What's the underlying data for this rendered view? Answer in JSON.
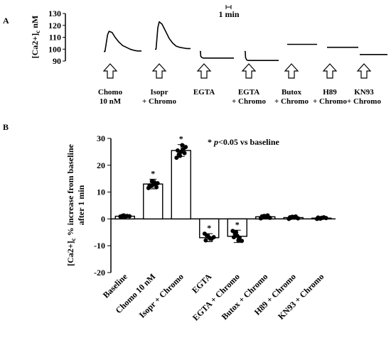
{
  "panel_a_letter": "A",
  "panel_b_letter": "B",
  "chart_data": [
    {
      "type": "line",
      "panel": "A",
      "ylabel_main": "[Ca2+]",
      "ylabel_sub": "c",
      "ylabel_unit": " nM",
      "ylim": [
        90,
        130
      ],
      "yticks": [
        90,
        100,
        110,
        120,
        130
      ],
      "scale_bar_label": "1 min",
      "series": [
        {
          "label_lines": [
            "Chomo",
            "10 nM"
          ],
          "t": [
            0,
            0.03,
            0.1,
            0.14,
            0.22,
            0.3,
            0.4,
            0.5,
            0.6,
            0.7,
            0.8,
            0.9,
            1.0
          ],
          "y": [
            98,
            98,
            112,
            115,
            114,
            110,
            106,
            103,
            101.5,
            100,
            99,
            98.5,
            98.5
          ]
        },
        {
          "label_lines": [
            "Isopr",
            "+ Chromo"
          ],
          "t": [
            0,
            0.03,
            0.08,
            0.12,
            0.2,
            0.3,
            0.4,
            0.5,
            0.6,
            0.7,
            0.8,
            0.9,
            1.0
          ],
          "y": [
            100,
            100,
            118,
            123,
            121,
            115,
            109,
            105,
            102.5,
            101.5,
            101,
            100.5,
            100.5
          ]
        },
        {
          "label_lines": [
            "EGTA"
          ],
          "t": [
            0,
            0.02,
            0.03,
            0.06,
            0.1,
            1.0
          ],
          "y": [
            98,
            98,
            94,
            93,
            92.5,
            92.5
          ]
        },
        {
          "label_lines": [
            "EGTA",
            "+ Chromo"
          ],
          "t": [
            0,
            0.02,
            0.03,
            0.06,
            0.1,
            1.0
          ],
          "y": [
            98,
            98,
            93,
            91,
            90.5,
            90.5
          ]
        },
        {
          "label_lines": [
            "Butox",
            "+ Chromo"
          ],
          "t": [
            0,
            0.5,
            1.0
          ],
          "y": [
            104,
            104,
            104
          ]
        },
        {
          "label_lines": [
            "H89",
            "+ Chromo"
          ],
          "t": [
            0,
            0.5,
            1.0
          ],
          "y": [
            101.5,
            101.5,
            101.5
          ]
        },
        {
          "label_lines": [
            "KN93",
            "+ Chromo"
          ],
          "t": [
            0,
            0.5,
            1.0
          ],
          "y": [
            95.5,
            95.5,
            95.5
          ]
        }
      ]
    },
    {
      "type": "bar",
      "panel": "B",
      "ylabel_line1": "[Ca2+]",
      "ylabel_sub": "c",
      "ylabel_rest": " % increase from baseline",
      "ylabel_line2": "after 1 min",
      "ylim": [
        -20,
        30
      ],
      "yticks": [
        -20,
        -10,
        0,
        10,
        20,
        30
      ],
      "significance_note_mark": "* ",
      "significance_note_p": "p",
      "significance_note_rest": "<0.05 vs baseline",
      "categories": [
        "Baseline",
        "Chomo 10 nM",
        "Isopr + Chromo",
        "EGTA",
        "EGTA + Chromo",
        "Butox + Chromo",
        "H89 + Chromo",
        "KN93 + Chromo"
      ],
      "values": [
        1,
        13,
        25.5,
        -7,
        -6.5,
        0.8,
        0.5,
        0.3
      ],
      "errors": [
        0.5,
        1.8,
        2.2,
        1.5,
        2.3,
        0.8,
        0.6,
        0.4
      ],
      "significant": [
        "",
        "*",
        "*",
        "*",
        "*",
        "",
        "",
        ""
      ],
      "points": [
        [
          0.9,
          1.2,
          0.8,
          1.1,
          1.0,
          0.7,
          1.3,
          1.0
        ],
        [
          11.5,
          12.2,
          12.8,
          13.0,
          13.3,
          12.5,
          14.0,
          13.8,
          11.8
        ],
        [
          22.8,
          24.0,
          25.0,
          26.0,
          26.8,
          25.5,
          23.5,
          27.5,
          24.5
        ],
        [
          -5.5,
          -6.2,
          -7.0,
          -7.5,
          -6.8,
          -8.0,
          -6.5,
          -7.2
        ],
        [
          -4.5,
          -5.5,
          -6.3,
          -7.0,
          -8.2,
          -6.8,
          -5.0,
          -8.0
        ],
        [
          0.2,
          0.6,
          1.0,
          1.3,
          0.4,
          0.9,
          1.1,
          0.7
        ],
        [
          0.0,
          0.4,
          0.7,
          0.9,
          0.2,
          0.6,
          0.8,
          0.5
        ],
        [
          0.0,
          0.2,
          0.4,
          0.6,
          0.3,
          0.5,
          0.1,
          0.4
        ]
      ]
    }
  ]
}
